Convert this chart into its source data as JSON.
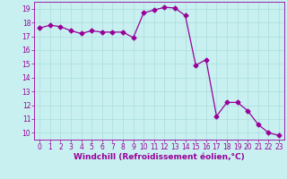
{
  "x": [
    0,
    1,
    2,
    3,
    4,
    5,
    6,
    7,
    8,
    9,
    10,
    11,
    12,
    13,
    14,
    15,
    16,
    17,
    18,
    19,
    20,
    21,
    22,
    23
  ],
  "y": [
    17.6,
    17.8,
    17.7,
    17.4,
    17.2,
    17.4,
    17.3,
    17.3,
    17.3,
    16.9,
    18.7,
    18.9,
    19.1,
    19.05,
    18.5,
    14.9,
    15.3,
    11.2,
    12.2,
    12.2,
    11.6,
    10.6,
    10.0,
    9.8
  ],
  "line_color": "#990099",
  "marker": "D",
  "markersize": 2.5,
  "linewidth": 0.9,
  "bg_color": "#c8f0f0",
  "grid_color": "#aadddd",
  "xlabel": "Windchill (Refroidissement éolien,°C)",
  "xlabel_color": "#990099",
  "xlabel_fontsize": 6.5,
  "tick_color": "#990099",
  "tick_fontsize": 5.5,
  "ylim": [
    9.5,
    19.5
  ],
  "xlim": [
    -0.5,
    23.5
  ],
  "yticks": [
    10,
    11,
    12,
    13,
    14,
    15,
    16,
    17,
    18,
    19
  ],
  "xticks": [
    0,
    1,
    2,
    3,
    4,
    5,
    6,
    7,
    8,
    9,
    10,
    11,
    12,
    13,
    14,
    15,
    16,
    17,
    18,
    19,
    20,
    21,
    22,
    23
  ]
}
